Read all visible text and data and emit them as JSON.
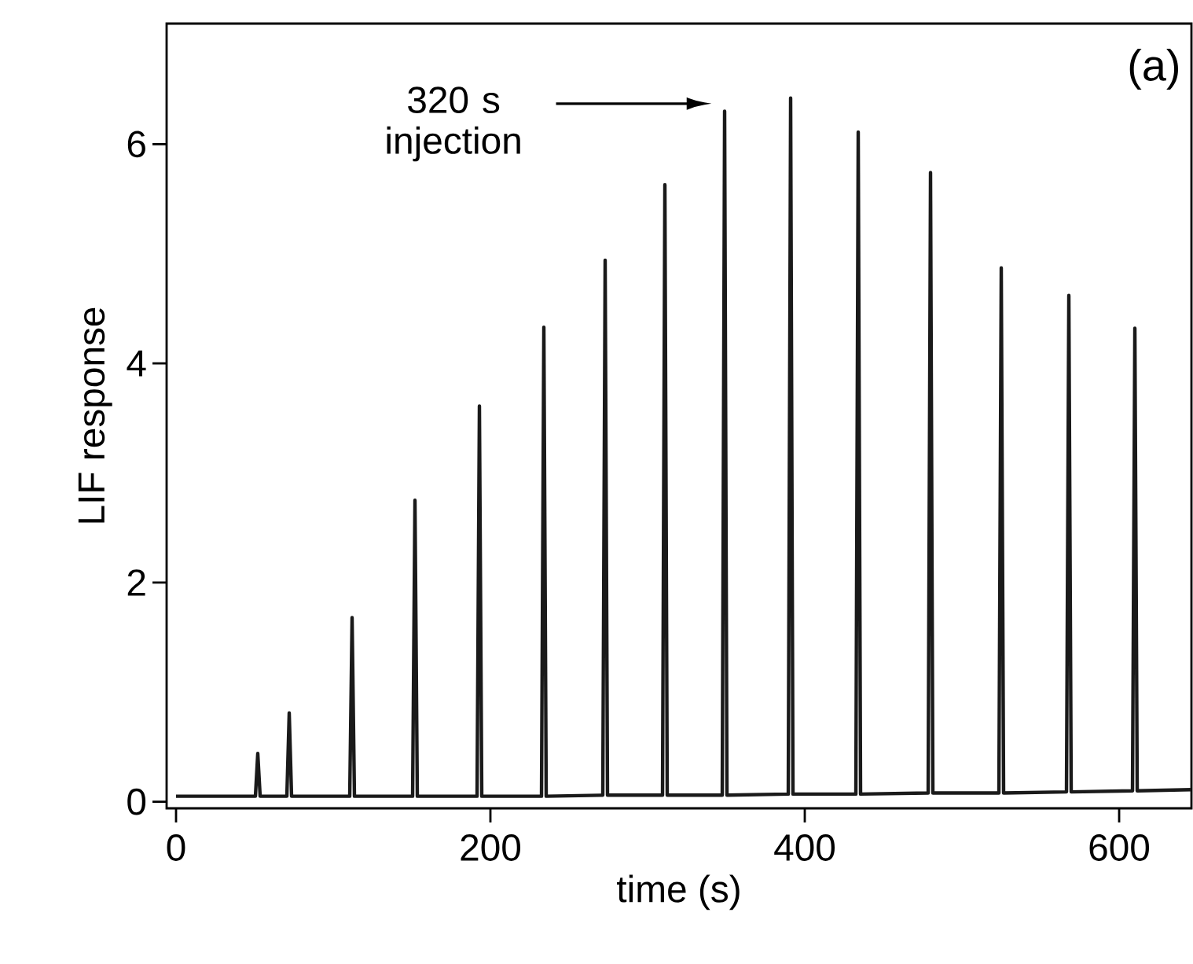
{
  "chart_data": {
    "type": "line",
    "xlabel": "time (s)",
    "ylabel": "LIF response",
    "xlim": [
      -6,
      646
    ],
    "ylim": [
      -0.06,
      7.1
    ],
    "xticks": [
      0,
      200,
      400,
      600
    ],
    "yticks": [
      0,
      2,
      4,
      6
    ],
    "annotations": [
      "320 s injection",
      "(a)"
    ],
    "series": [
      {
        "color": "#1a1a1a",
        "x": [
          0,
          50.5,
          52,
          53.5,
          70.5,
          72,
          73.5,
          110.5,
          112,
          113.5,
          150.5,
          152,
          153.5,
          191.5,
          193,
          194.5,
          232.5,
          234,
          235.5,
          271.5,
          273,
          274.5,
          309.5,
          311,
          312.5,
          347.5,
          349,
          350.5,
          389.5,
          391,
          392.5,
          432.5,
          434,
          435.5,
          478.5,
          480,
          481.5,
          523.5,
          525,
          526.5,
          566.5,
          568,
          569.5,
          608.5,
          610,
          611.5,
          646
        ],
        "values": [
          0.05,
          0.05,
          0.44,
          0.05,
          0.05,
          0.81,
          0.05,
          0.05,
          1.68,
          0.05,
          0.05,
          2.75,
          0.05,
          0.05,
          3.61,
          0.05,
          0.05,
          4.33,
          0.05,
          0.06,
          4.94,
          0.06,
          0.06,
          5.63,
          0.06,
          0.06,
          6.3,
          0.06,
          0.07,
          6.42,
          0.07,
          0.07,
          6.11,
          0.07,
          0.08,
          5.74,
          0.08,
          0.08,
          4.87,
          0.08,
          0.09,
          4.62,
          0.09,
          0.1,
          4.32,
          0.1,
          0.11
        ]
      }
    ]
  }
}
